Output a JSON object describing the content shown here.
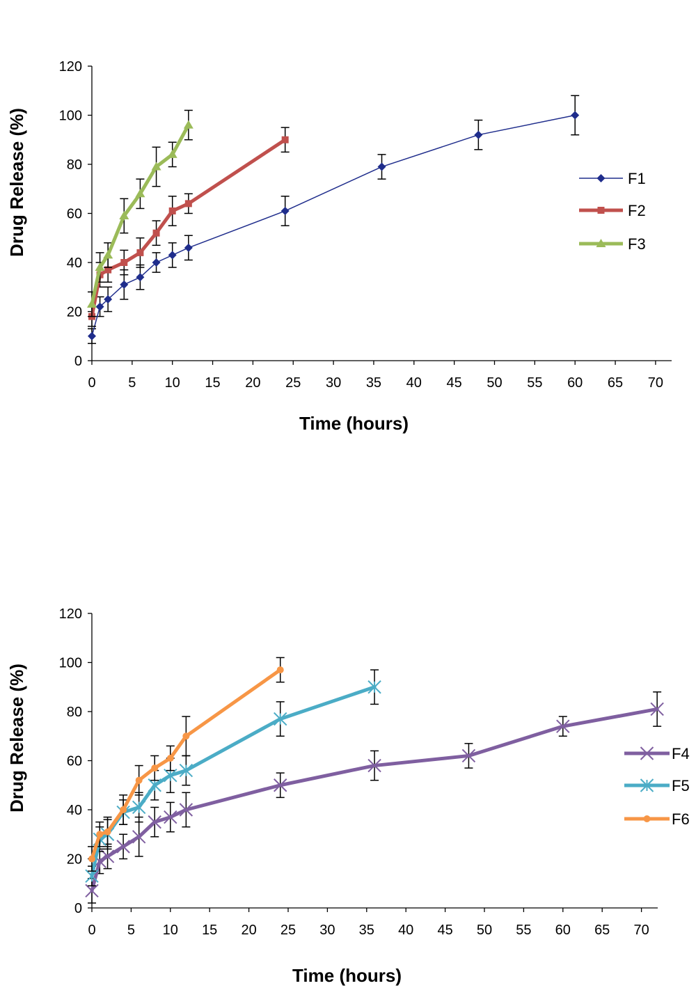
{
  "chart_data": [
    {
      "type": "line",
      "xlabel": "Time (hours)",
      "ylabel": "Drug Release (%)",
      "xlim": [
        0,
        70
      ],
      "ylim": [
        0,
        120
      ],
      "xticks": [
        "0",
        "5",
        "10",
        "15",
        "20",
        "25",
        "30",
        "35",
        "40",
        "45",
        "50",
        "55",
        "60",
        "65",
        "70"
      ],
      "yticks": [
        "0",
        "20",
        "40",
        "60",
        "80",
        "100",
        "120"
      ],
      "legend_position": "right",
      "series": [
        {
          "name": "F1",
          "color": "#1f2d8c",
          "marker": "diamond",
          "width": 1.5,
          "x": [
            0,
            1,
            2,
            4,
            6,
            8,
            10,
            12,
            24,
            36,
            48,
            60
          ],
          "y": [
            10,
            22,
            25,
            31,
            34,
            40,
            43,
            46,
            61,
            79,
            92,
            100
          ],
          "err": [
            3,
            4,
            5,
            6,
            5,
            4,
            5,
            5,
            6,
            5,
            6,
            8
          ]
        },
        {
          "name": "F2",
          "color": "#c0504d",
          "marker": "square",
          "width": 5,
          "x": [
            0,
            1,
            2,
            4,
            6,
            8,
            10,
            12,
            24
          ],
          "y": [
            18,
            35,
            37,
            40,
            44,
            52,
            61,
            64,
            90
          ],
          "err": [
            4,
            5,
            5,
            5,
            6,
            5,
            6,
            4,
            5
          ]
        },
        {
          "name": "F3",
          "color": "#9bbb59",
          "marker": "triangle",
          "width": 5,
          "x": [
            0,
            1,
            2,
            4,
            6,
            8,
            10,
            12
          ],
          "y": [
            23,
            38,
            43,
            59,
            68,
            79,
            84,
            96
          ],
          "err": [
            5,
            6,
            5,
            7,
            6,
            8,
            5,
            6
          ]
        }
      ]
    },
    {
      "type": "line",
      "xlabel": "Time (hours)",
      "ylabel": "Drug Release (%)",
      "xlim": [
        0,
        72
      ],
      "ylim": [
        0,
        120
      ],
      "xticks": [
        "0",
        "5",
        "10",
        "15",
        "20",
        "25",
        "30",
        "35",
        "40",
        "45",
        "50",
        "55",
        "60",
        "65",
        "70"
      ],
      "yticks": [
        "0",
        "20",
        "40",
        "60",
        "80",
        "100",
        "120"
      ],
      "legend_position": "right",
      "series": [
        {
          "name": "F4",
          "color": "#7f5fa0",
          "marker": "x",
          "width": 5,
          "x": [
            0,
            1,
            2,
            4,
            6,
            8,
            10,
            12,
            24,
            36,
            48,
            60,
            72
          ],
          "y": [
            7,
            19,
            21,
            25,
            29,
            35,
            37,
            40,
            50,
            58,
            62,
            74,
            81
          ],
          "err": [
            5,
            5,
            5,
            5,
            8,
            6,
            6,
            7,
            5,
            6,
            5,
            4,
            7
          ]
        },
        {
          "name": "F5",
          "color": "#4bacc6",
          "marker": "star",
          "width": 5,
          "x": [
            0,
            1,
            2,
            4,
            6,
            8,
            10,
            12,
            24,
            36
          ],
          "y": [
            13,
            28,
            30,
            39,
            41,
            50,
            54,
            56,
            77,
            90
          ],
          "err": [
            4,
            5,
            6,
            5,
            6,
            6,
            7,
            6,
            7,
            7
          ]
        },
        {
          "name": "F6",
          "color": "#f79646",
          "marker": "circle",
          "width": 5,
          "x": [
            0,
            1,
            2,
            4,
            6,
            8,
            10,
            12,
            24
          ],
          "y": [
            20,
            30,
            31,
            40,
            52,
            57,
            61,
            70,
            97
          ],
          "err": [
            5,
            5,
            6,
            6,
            6,
            5,
            5,
            8,
            5
          ]
        }
      ]
    }
  ]
}
